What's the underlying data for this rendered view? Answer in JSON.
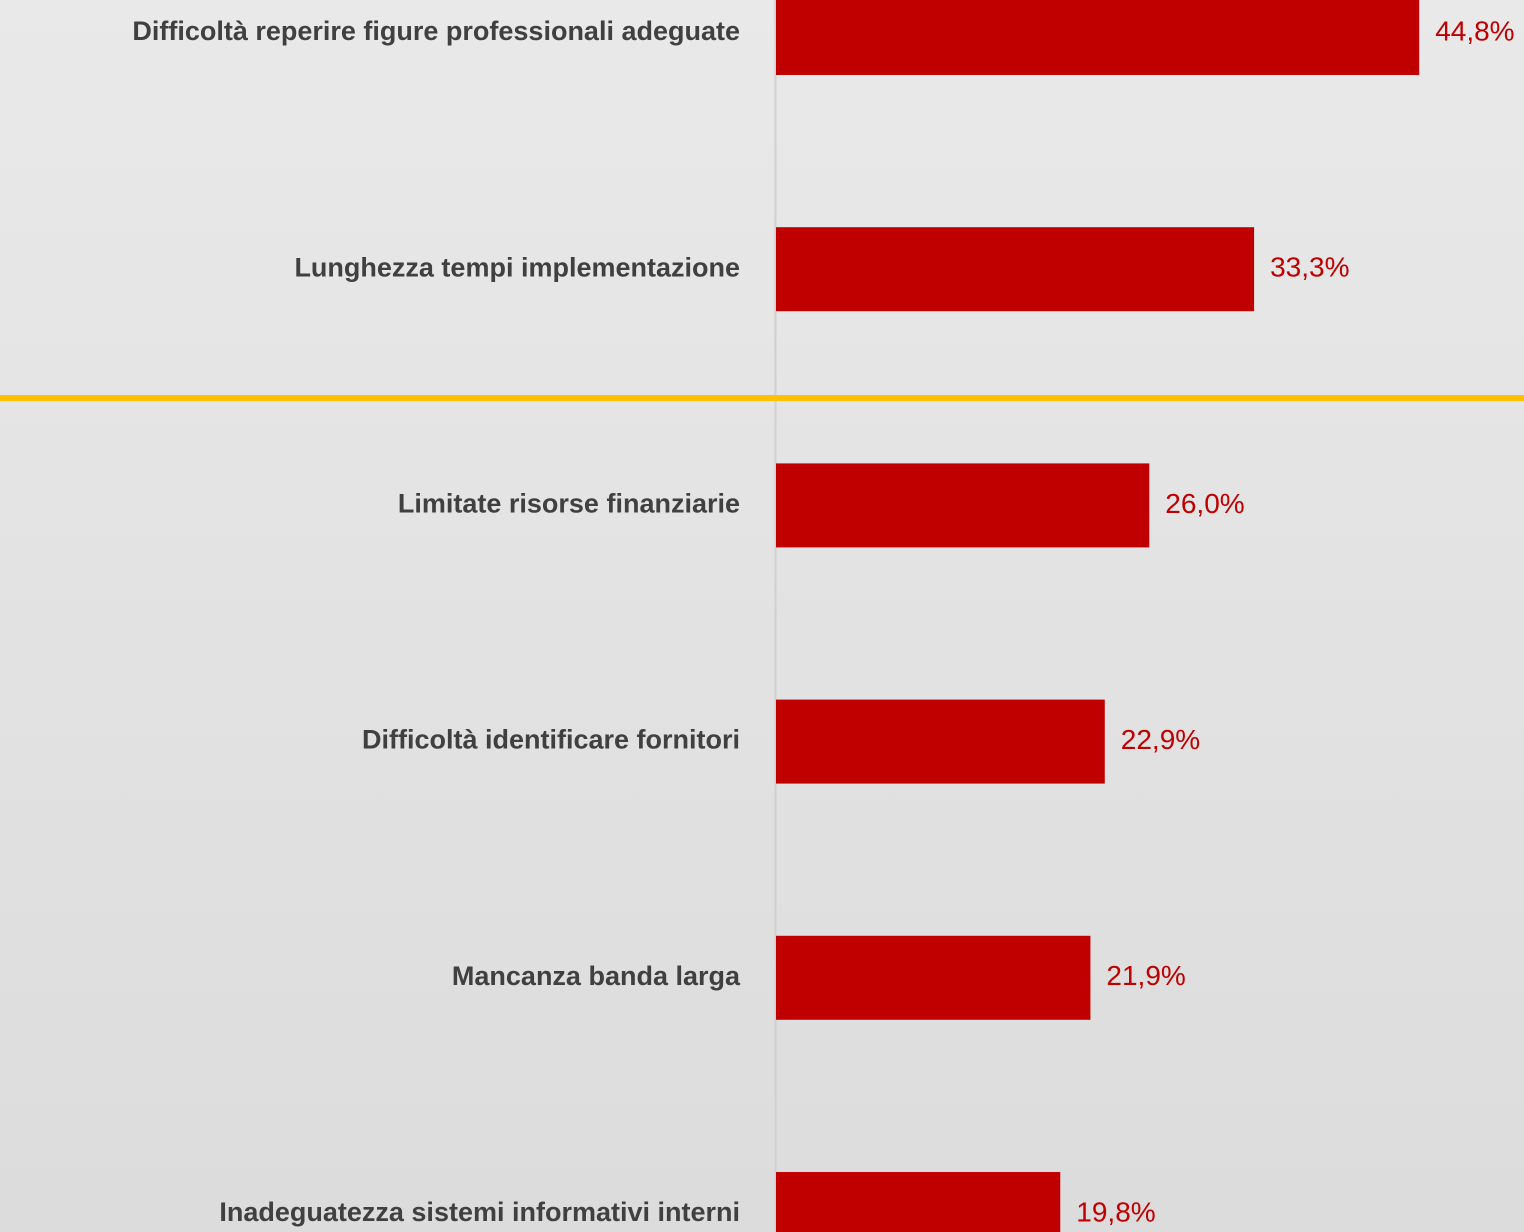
{
  "chart_data": {
    "type": "bar",
    "orientation": "horizontal",
    "categories": [
      "Difficoltà reperire figure professionali adeguate",
      "Lunghezza tempi implementazione",
      "Limitate risorse finanziarie",
      "Difficoltà identificare fornitori",
      "Mancanza banda larga",
      "Inadeguatezza sistemi informativi interni"
    ],
    "values": [
      44.8,
      33.3,
      26.0,
      22.9,
      21.9,
      19.8
    ],
    "value_labels": [
      "44,8%",
      "33,3%",
      "26,0%",
      "22,9%",
      "21,9%",
      "19,8%"
    ],
    "color": "#c00000",
    "xlim": [
      0,
      52.1
    ]
  }
}
